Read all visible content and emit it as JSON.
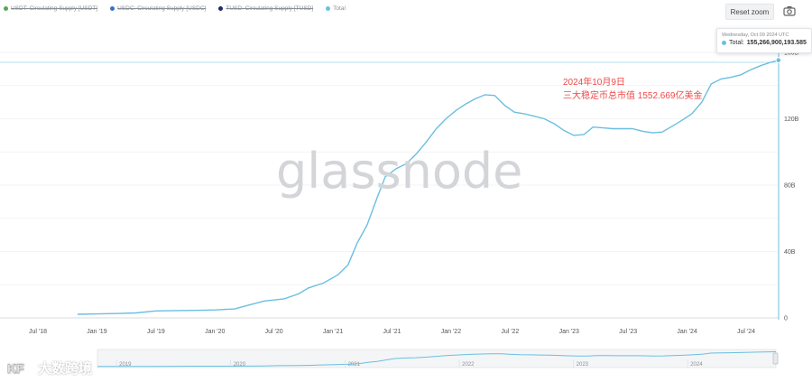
{
  "legend": [
    {
      "label": "USDT: Circulating Supply [USDT]",
      "color": "#5ba35b",
      "hidden": true
    },
    {
      "label": "USDC: Circulating Supply [USDC]",
      "color": "#3a6fd1",
      "hidden": true
    },
    {
      "label": "TUSD: Circulating Supply [TUSD]",
      "color": "#1e2a6a",
      "hidden": true
    },
    {
      "label": "Total",
      "color": "#6bbfe0",
      "hidden": false
    }
  ],
  "toolbar": {
    "reset_zoom": "Reset zoom",
    "camera_icon": "camera-icon"
  },
  "tooltip": {
    "date": "Wednesday, Oct 09 2024 UTC",
    "series": "Total:",
    "value": "155,266,900,193.585"
  },
  "annotation": {
    "line1": "2024年10月9日",
    "line2": "三大稳定币总市值 1552.669亿美金"
  },
  "watermark": "glassnode",
  "brand": {
    "text": "大数跨境",
    "logo": "kf-logo-icon"
  },
  "navigator": {
    "labels": [
      "2019",
      "2020",
      "2021",
      "2022",
      "2023",
      "2024"
    ]
  },
  "chart_data": {
    "type": "line",
    "title": "",
    "xlabel": "",
    "ylabel": "",
    "x_ticks": [
      "Jul '18",
      "Jan '19",
      "Jul '19",
      "Jan '20",
      "Jul '20",
      "Jan '21",
      "Jul '21",
      "Jan '22",
      "Jul '22",
      "Jan '23",
      "Jul '23",
      "Jan '24",
      "Jul '24"
    ],
    "y_ticks": [
      "0",
      "40B",
      "80B",
      "120B",
      "160B"
    ],
    "ylim": [
      0,
      160
    ],
    "unit": "B USD",
    "series": [
      {
        "name": "Total",
        "color": "#6bbfe0",
        "points": [
          [
            "2018-11-01",
            2.2
          ],
          [
            "2019-01-01",
            2.4
          ],
          [
            "2019-03-01",
            2.6
          ],
          [
            "2019-05-01",
            3.0
          ],
          [
            "2019-07-01",
            4.2
          ],
          [
            "2019-09-01",
            4.4
          ],
          [
            "2019-11-01",
            4.5
          ],
          [
            "2020-01-01",
            4.8
          ],
          [
            "2020-03-01",
            5.4
          ],
          [
            "2020-04-15",
            7.8
          ],
          [
            "2020-06-01",
            10.2
          ],
          [
            "2020-08-01",
            11.5
          ],
          [
            "2020-09-15",
            14.5
          ],
          [
            "2020-10-15",
            18.0
          ],
          [
            "2020-12-01",
            21.0
          ],
          [
            "2021-01-15",
            26.0
          ],
          [
            "2021-02-15",
            32.0
          ],
          [
            "2021-03-15",
            45.0
          ],
          [
            "2021-04-15",
            56.0
          ],
          [
            "2021-05-15",
            72.0
          ],
          [
            "2021-06-10",
            85.0
          ],
          [
            "2021-07-15",
            90.0
          ],
          [
            "2021-08-15",
            93.0
          ],
          [
            "2021-09-15",
            99.0
          ],
          [
            "2021-10-15",
            106.0
          ],
          [
            "2021-11-15",
            114.0
          ],
          [
            "2021-12-15",
            120.0
          ],
          [
            "2022-01-15",
            125.0
          ],
          [
            "2022-02-15",
            129.0
          ],
          [
            "2022-03-15",
            132.0
          ],
          [
            "2022-04-15",
            134.5
          ],
          [
            "2022-05-15",
            134.0
          ],
          [
            "2022-06-15",
            128.0
          ],
          [
            "2022-07-15",
            124.0
          ],
          [
            "2022-08-15",
            123.0
          ],
          [
            "2022-09-15",
            121.5
          ],
          [
            "2022-10-15",
            120.0
          ],
          [
            "2022-11-15",
            117.0
          ],
          [
            "2022-12-15",
            113.0
          ],
          [
            "2023-01-15",
            110.0
          ],
          [
            "2023-02-15",
            110.5
          ],
          [
            "2023-03-15",
            115.0
          ],
          [
            "2023-04-15",
            114.5
          ],
          [
            "2023-05-15",
            114.0
          ],
          [
            "2023-06-15",
            114.0
          ],
          [
            "2023-07-15",
            114.0
          ],
          [
            "2023-08-15",
            112.5
          ],
          [
            "2023-09-15",
            111.5
          ],
          [
            "2023-10-15",
            112.0
          ],
          [
            "2023-11-15",
            115.5
          ],
          [
            "2023-12-15",
            119.0
          ],
          [
            "2024-01-15",
            123.0
          ],
          [
            "2024-02-15",
            130.0
          ],
          [
            "2024-03-15",
            141.0
          ],
          [
            "2024-04-15",
            144.0
          ],
          [
            "2024-05-15",
            145.0
          ],
          [
            "2024-06-15",
            146.5
          ],
          [
            "2024-07-15",
            149.5
          ],
          [
            "2024-08-15",
            152.0
          ],
          [
            "2024-09-15",
            154.0
          ],
          [
            "2024-10-09",
            155.27
          ]
        ]
      }
    ]
  }
}
